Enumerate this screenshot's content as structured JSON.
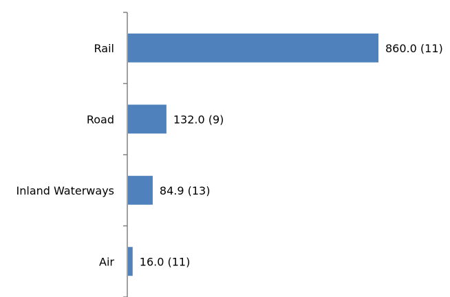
{
  "chart_data": {
    "type": "bar",
    "orientation": "horizontal",
    "categories": [
      "Rail",
      "Road",
      "Inland Waterways",
      "Air"
    ],
    "values": [
      860.0,
      132.0,
      84.9,
      16.0
    ],
    "counts": [
      11,
      9,
      13,
      11
    ],
    "data_labels": [
      "860.0 (11)",
      "132.0 (9)",
      "84.9 (13)",
      "16.0 (11)"
    ],
    "title": "",
    "xlabel": "",
    "ylabel": "",
    "xlim": [
      0,
      860
    ],
    "grid": false,
    "legend": "none",
    "colors": {
      "bar": "#4f81bd",
      "axis": "#808080",
      "text": "#000000"
    }
  }
}
